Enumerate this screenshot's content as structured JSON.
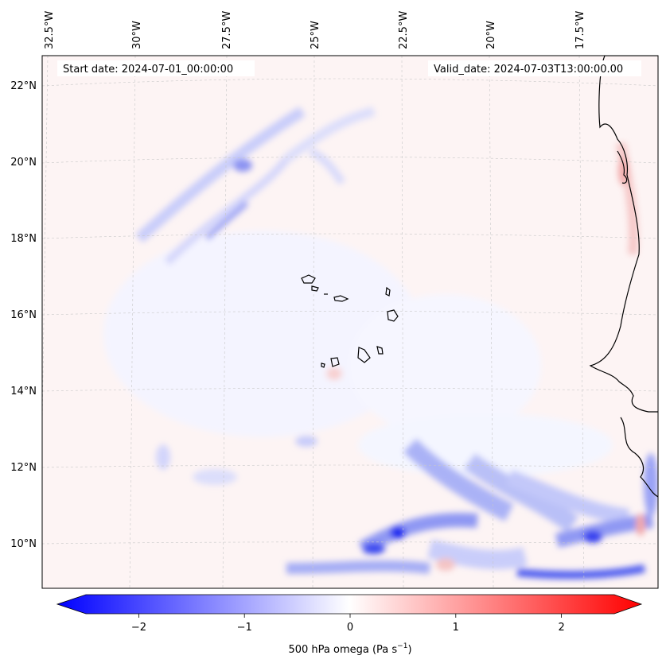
{
  "map": {
    "start_date": "Start date: 2024-07-01_00:00:00",
    "valid_date": "Valid_date: 2024-07-03T13:00:00.00",
    "lon_labels": [
      "32.5°W",
      "30°W",
      "27.5°W",
      "25°W",
      "22.5°W",
      "20°W",
      "17.5°W"
    ],
    "lat_labels": [
      "22°N",
      "20°N",
      "18°N",
      "16°N",
      "14°N",
      "12°N",
      "10°N"
    ]
  },
  "colorbar": {
    "label": "500 hPa omega (Pa s",
    "label_superscript": "−1",
    "label_close": ")",
    "ticks": [
      "−2",
      "−1",
      "0",
      "1",
      "2"
    ],
    "range": [
      -2.5,
      2.5
    ],
    "min_color": "#0000ff",
    "max_color": "#ff0000",
    "mid_color": "#ffffff"
  }
}
